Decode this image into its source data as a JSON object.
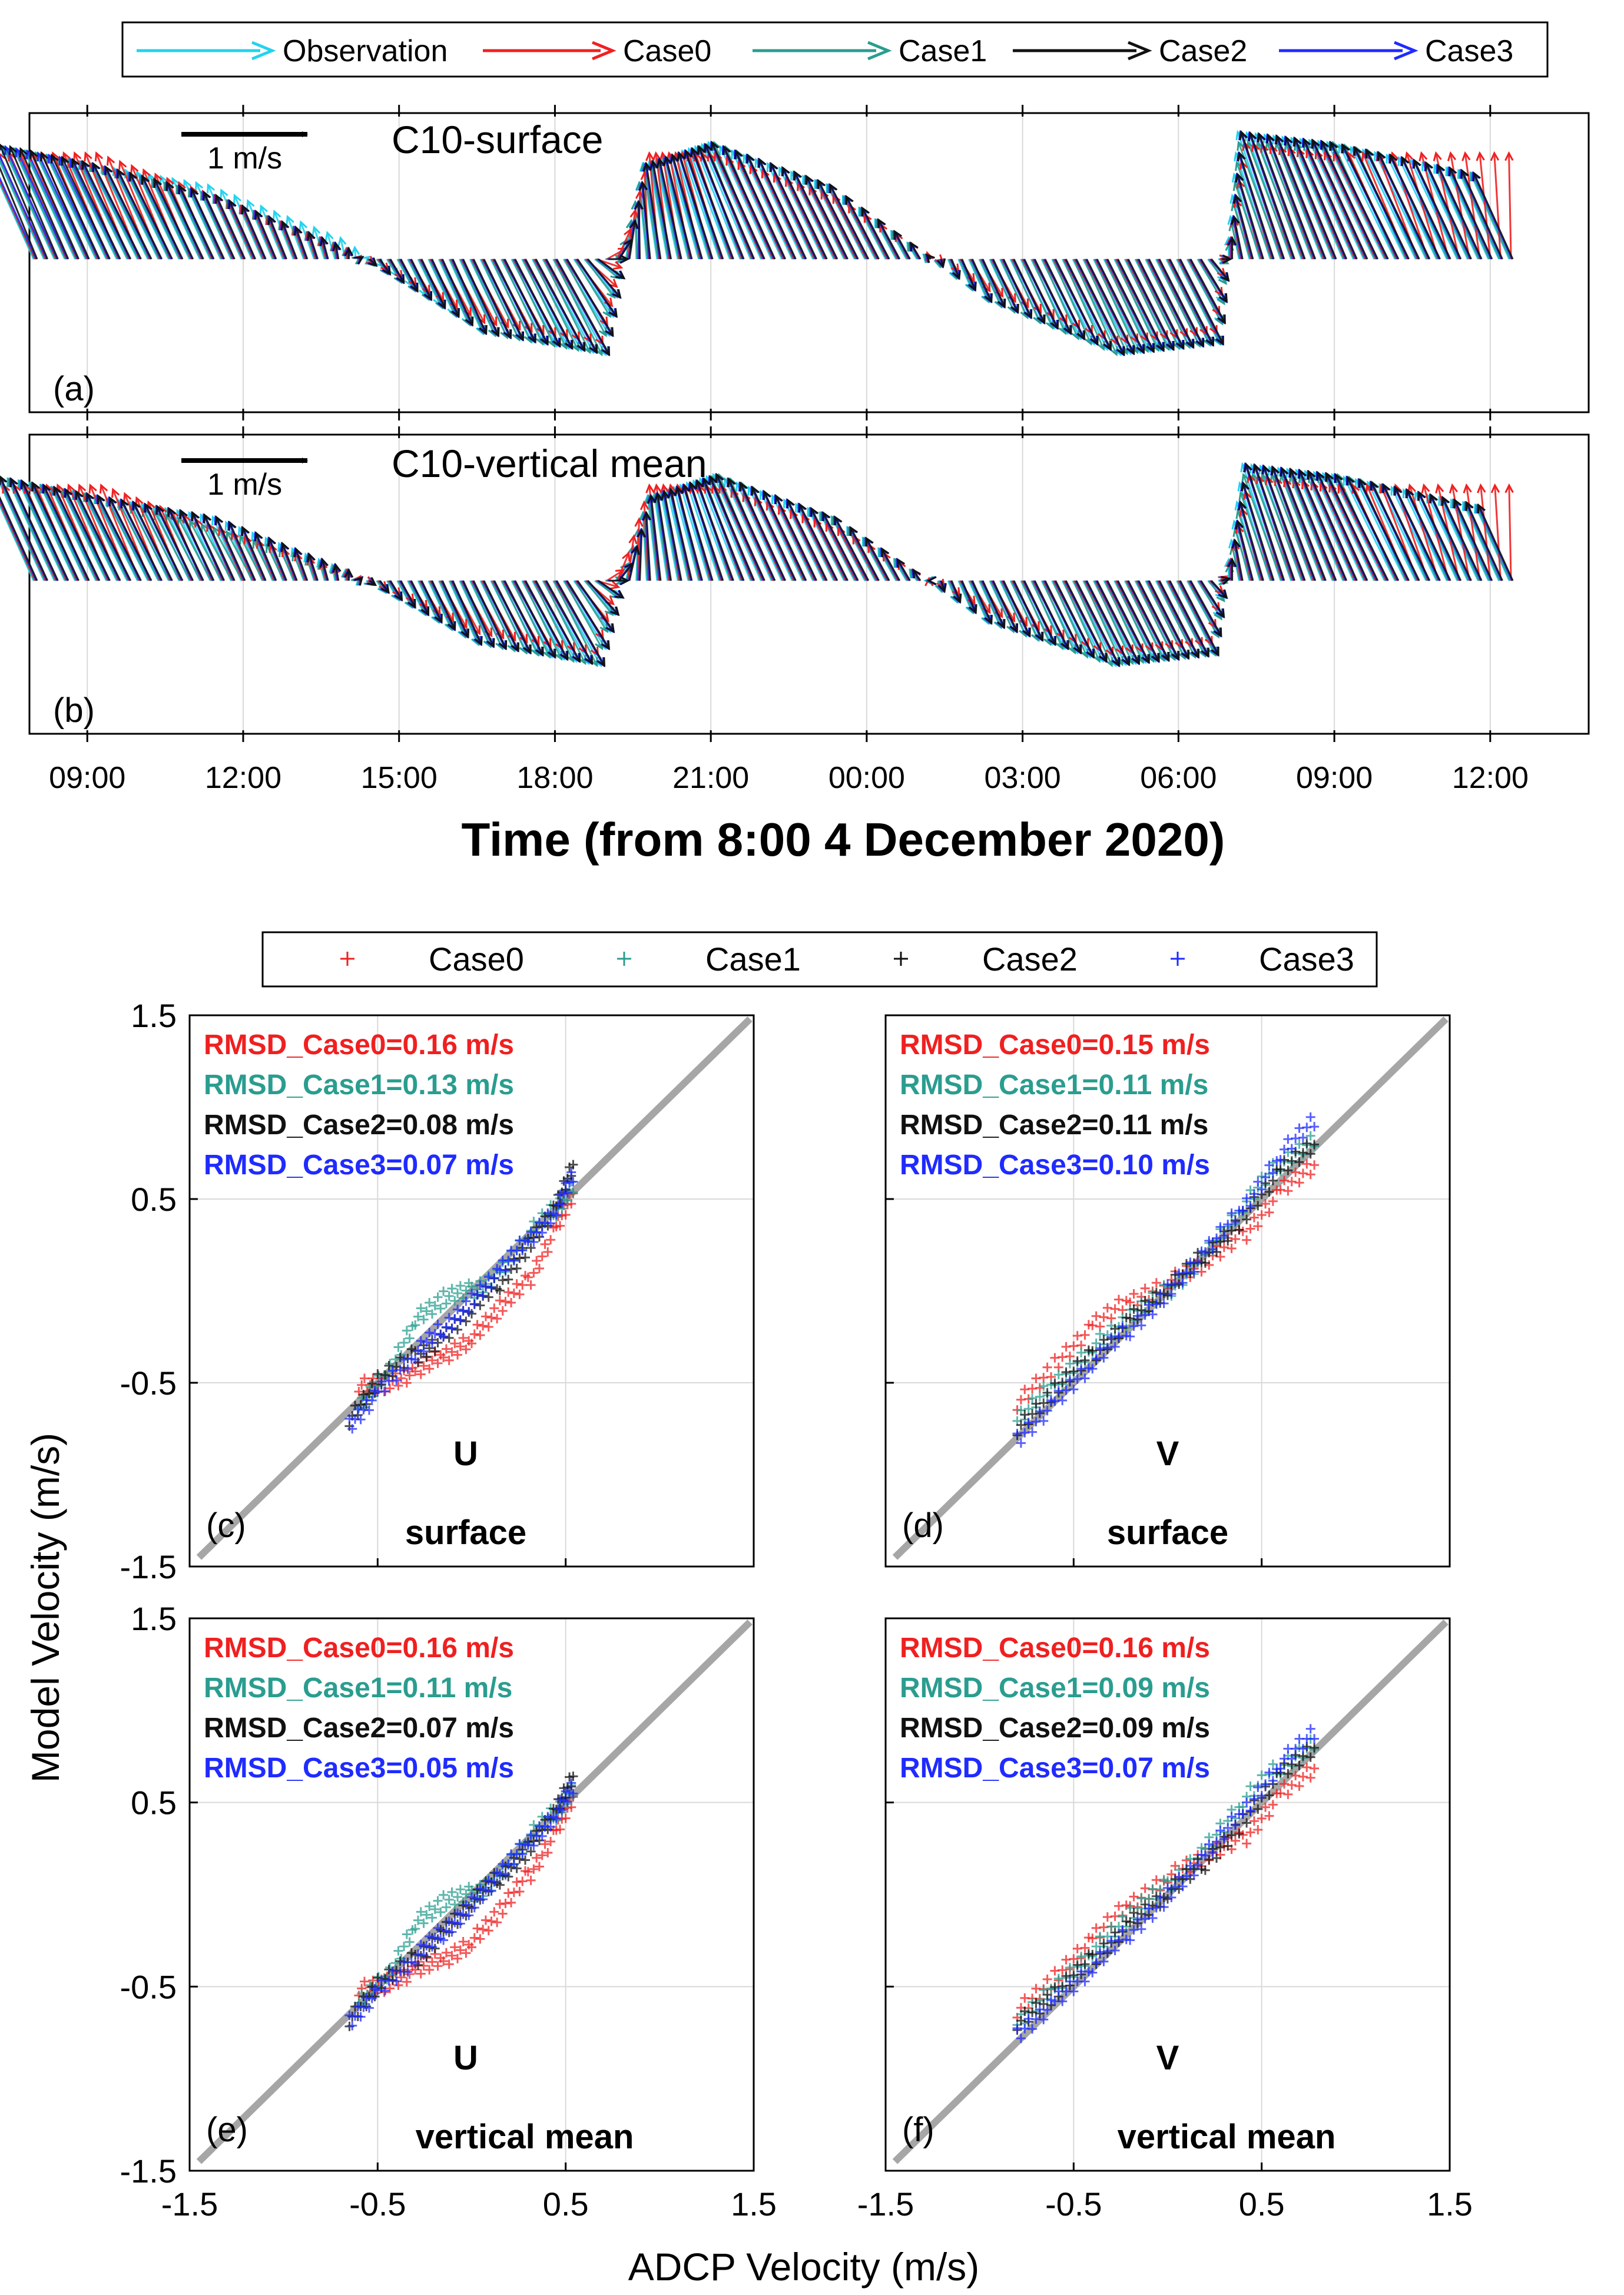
{
  "colors": {
    "observation": "#22d3ee",
    "case0": "#f02020",
    "case1": "#2a9d8f",
    "case2": "#111111",
    "case3": "#1f2bff",
    "grid": "#d9d9d9",
    "one_to_one": "#a6a6a6"
  },
  "top_legend": {
    "entries": [
      "Observation",
      "Case0",
      "Case1",
      "Case2",
      "Case3"
    ]
  },
  "scatter_legend": {
    "entries": [
      "Case0",
      "Case1",
      "Case2",
      "Case3"
    ]
  },
  "time_axis": {
    "ticks": [
      "09:00",
      "12:00",
      "15:00",
      "18:00",
      "21:00",
      "00:00",
      "03:00",
      "06:00",
      "09:00",
      "12:00"
    ],
    "xlabel": "Time (from 8:00 4 December 2020)"
  },
  "scale_label": "1 m/s",
  "scatter_axes": {
    "xlabel": "ADCP Velocity (m/s)",
    "ylabel": "Model Velocity (m/s)",
    "ticks": [
      "-1.5",
      "-0.5",
      "0.5",
      "1.5"
    ]
  },
  "chart_data": [
    {
      "type": "vector-time-series",
      "panel": "(a)",
      "title": "C10-surface",
      "x_unit": "hours since 8:00 4 December 2020",
      "xlim": [
        0.0,
        29.6
      ],
      "series": [
        {
          "name": "Observation",
          "time_h": [
            0,
            2,
            4,
            6,
            8,
            10,
            12,
            14,
            16,
            18,
            20,
            22,
            24,
            26,
            28.5
          ],
          "u": [
            0.55,
            0.5,
            0.35,
            0.05,
            -0.35,
            -0.55,
            0.15,
            0.55,
            0.4,
            -0.2,
            -0.5,
            -0.45,
            0.45,
            0.6,
            0.4
          ],
          "v": [
            0.55,
            0.45,
            0.35,
            0.1,
            -0.35,
            -0.45,
            0.45,
            0.55,
            0.35,
            -0.2,
            -0.45,
            -0.4,
            0.6,
            0.55,
            0.4
          ]
        },
        {
          "name": "Case0",
          "time_h": [
            0,
            2,
            4,
            6,
            8,
            10,
            12,
            14,
            16,
            18,
            20,
            22,
            24,
            26,
            28.5
          ],
          "u": [
            0.5,
            0.45,
            0.3,
            0.0,
            -0.35,
            -0.5,
            0.1,
            0.5,
            0.35,
            -0.2,
            -0.45,
            -0.4,
            0.4,
            0.55,
            0.0
          ],
          "v": [
            0.5,
            0.5,
            0.3,
            0.05,
            -0.3,
            -0.4,
            0.5,
            0.5,
            0.3,
            -0.15,
            -0.4,
            -0.35,
            0.55,
            0.5,
            0.5
          ]
        },
        {
          "name": "Case1",
          "time_h": [
            0,
            2,
            4,
            6,
            8,
            10,
            12,
            14,
            16,
            18,
            20,
            22,
            24,
            26,
            28.5
          ],
          "u": [
            0.55,
            0.5,
            0.3,
            0.0,
            -0.35,
            -0.5,
            0.15,
            0.5,
            0.4,
            -0.2,
            -0.45,
            -0.45,
            0.45,
            0.55,
            0.4
          ],
          "v": [
            0.55,
            0.45,
            0.3,
            0.05,
            -0.35,
            -0.45,
            0.45,
            0.55,
            0.35,
            -0.2,
            -0.45,
            -0.4,
            0.55,
            0.55,
            0.4
          ]
        },
        {
          "name": "Case2",
          "time_h": [
            0,
            2,
            4,
            6,
            8,
            10,
            12,
            14,
            16,
            18,
            20,
            22,
            24,
            26,
            28.5
          ],
          "u": [
            0.5,
            0.5,
            0.3,
            0.0,
            -0.35,
            -0.55,
            0.15,
            0.55,
            0.4,
            -0.2,
            -0.5,
            -0.45,
            0.45,
            0.6,
            0.4
          ],
          "v": [
            0.55,
            0.45,
            0.3,
            0.05,
            -0.35,
            -0.45,
            0.45,
            0.55,
            0.35,
            -0.2,
            -0.45,
            -0.4,
            0.6,
            0.55,
            0.4
          ]
        },
        {
          "name": "Case3",
          "time_h": [
            0,
            2,
            4,
            6,
            8,
            10,
            12,
            14,
            16,
            18,
            20,
            22,
            24,
            26,
            28.5
          ],
          "u": [
            0.55,
            0.5,
            0.3,
            0.0,
            -0.35,
            -0.55,
            0.15,
            0.55,
            0.4,
            -0.2,
            -0.5,
            -0.45,
            0.45,
            0.6,
            0.4
          ],
          "v": [
            0.55,
            0.45,
            0.3,
            0.05,
            -0.35,
            -0.45,
            0.45,
            0.55,
            0.35,
            -0.2,
            -0.45,
            -0.4,
            0.6,
            0.55,
            0.4
          ]
        }
      ]
    },
    {
      "type": "vector-time-series",
      "panel": "(b)",
      "title": "C10-vertical mean",
      "x_unit": "hours since 8:00 4 December 2020",
      "xlim": [
        0.0,
        29.6
      ],
      "series": [
        {
          "name": "Observation",
          "time_h": [
            0,
            2,
            4,
            6,
            8,
            10,
            12,
            14,
            16,
            18,
            20,
            22,
            24,
            26,
            28.5
          ],
          "u": [
            0.5,
            0.45,
            0.3,
            0.0,
            -0.3,
            -0.5,
            0.1,
            0.5,
            0.35,
            -0.2,
            -0.45,
            -0.4,
            0.4,
            0.55,
            0.35
          ],
          "v": [
            0.5,
            0.4,
            0.3,
            0.05,
            -0.3,
            -0.4,
            0.4,
            0.5,
            0.3,
            -0.2,
            -0.4,
            -0.35,
            0.55,
            0.5,
            0.35
          ]
        },
        {
          "name": "Case0",
          "time_h": [
            0,
            2,
            4,
            6,
            8,
            10,
            12,
            14,
            16,
            18,
            20,
            22,
            24,
            26,
            28.5
          ],
          "u": [
            0.45,
            0.4,
            0.25,
            0.0,
            -0.3,
            -0.45,
            0.1,
            0.45,
            0.3,
            -0.2,
            -0.4,
            -0.35,
            0.35,
            0.5,
            0.0
          ],
          "v": [
            0.45,
            0.45,
            0.25,
            0.05,
            -0.25,
            -0.35,
            0.45,
            0.45,
            0.25,
            -0.15,
            -0.35,
            -0.3,
            0.5,
            0.45,
            0.45
          ]
        },
        {
          "name": "Case1",
          "time_h": [
            0,
            2,
            4,
            6,
            8,
            10,
            12,
            14,
            16,
            18,
            20,
            22,
            24,
            26,
            28.5
          ],
          "u": [
            0.5,
            0.45,
            0.3,
            0.0,
            -0.3,
            -0.45,
            0.1,
            0.45,
            0.35,
            -0.2,
            -0.4,
            -0.4,
            0.4,
            0.5,
            0.35
          ],
          "v": [
            0.5,
            0.4,
            0.25,
            0.05,
            -0.3,
            -0.4,
            0.4,
            0.5,
            0.3,
            -0.2,
            -0.4,
            -0.35,
            0.5,
            0.5,
            0.35
          ]
        },
        {
          "name": "Case2",
          "time_h": [
            0,
            2,
            4,
            6,
            8,
            10,
            12,
            14,
            16,
            18,
            20,
            22,
            24,
            26,
            28.5
          ],
          "u": [
            0.5,
            0.45,
            0.3,
            0.0,
            -0.3,
            -0.5,
            0.1,
            0.5,
            0.35,
            -0.2,
            -0.45,
            -0.4,
            0.4,
            0.55,
            0.35
          ],
          "v": [
            0.5,
            0.4,
            0.3,
            0.05,
            -0.3,
            -0.4,
            0.4,
            0.5,
            0.3,
            -0.2,
            -0.4,
            -0.35,
            0.55,
            0.5,
            0.35
          ]
        },
        {
          "name": "Case3",
          "time_h": [
            0,
            2,
            4,
            6,
            8,
            10,
            12,
            14,
            16,
            18,
            20,
            22,
            24,
            26,
            28.5
          ],
          "u": [
            0.5,
            0.45,
            0.3,
            0.0,
            -0.3,
            -0.5,
            0.1,
            0.5,
            0.35,
            -0.2,
            -0.45,
            -0.4,
            0.4,
            0.55,
            0.35
          ],
          "v": [
            0.5,
            0.4,
            0.3,
            0.05,
            -0.3,
            -0.4,
            0.4,
            0.5,
            0.3,
            -0.2,
            -0.4,
            -0.35,
            0.55,
            0.5,
            0.35
          ]
        }
      ]
    },
    {
      "type": "scatter",
      "panel": "(c)",
      "component": "U",
      "layer": "surface",
      "xlim": [
        -1.5,
        1.5
      ],
      "ylim": [
        -1.5,
        1.5
      ],
      "rmsd": [
        {
          "series": "Case0",
          "text": "RMSD_Case0=0.16 m/s"
        },
        {
          "series": "Case1",
          "text": "RMSD_Case1=0.13 m/s"
        },
        {
          "series": "Case2",
          "text": "RMSD_Case2=0.08 m/s"
        },
        {
          "series": "Case3",
          "text": "RMSD_Case3=0.07 m/s"
        }
      ],
      "series": [
        {
          "name": "Case0",
          "x": [
            -0.6,
            -0.45,
            -0.3,
            -0.15,
            0.0,
            0.15,
            0.3,
            0.45,
            0.55
          ],
          "y": [
            -0.5,
            -0.5,
            -0.45,
            -0.35,
            -0.25,
            -0.1,
            0.05,
            0.35,
            0.55
          ]
        },
        {
          "name": "Case1",
          "x": [
            -0.6,
            -0.45,
            -0.3,
            -0.15,
            0.0,
            0.15,
            0.3,
            0.45,
            0.55
          ],
          "y": [
            -0.65,
            -0.45,
            -0.15,
            -0.05,
            0.0,
            0.1,
            0.3,
            0.45,
            0.6
          ]
        },
        {
          "name": "Case2",
          "x": [
            -0.65,
            -0.5,
            -0.3,
            -0.15,
            0.0,
            0.15,
            0.3,
            0.45,
            0.55
          ],
          "y": [
            -0.7,
            -0.5,
            -0.35,
            -0.25,
            -0.1,
            0.05,
            0.25,
            0.45,
            0.7
          ]
        },
        {
          "name": "Case3",
          "x": [
            -0.65,
            -0.5,
            -0.3,
            -0.15,
            0.0,
            0.15,
            0.3,
            0.45,
            0.55
          ],
          "y": [
            -0.72,
            -0.55,
            -0.35,
            -0.2,
            -0.05,
            0.1,
            0.28,
            0.45,
            0.65
          ]
        }
      ]
    },
    {
      "type": "scatter",
      "panel": "(d)",
      "component": "V",
      "layer": "surface",
      "xlim": [
        -1.5,
        1.5
      ],
      "ylim": [
        -1.5,
        1.5
      ],
      "rmsd": [
        {
          "series": "Case0",
          "text": "RMSD_Case0=0.15 m/s"
        },
        {
          "series": "Case1",
          "text": "RMSD_Case1=0.11 m/s"
        },
        {
          "series": "Case2",
          "text": "RMSD_Case2=0.11 m/s"
        },
        {
          "series": "Case3",
          "text": "RMSD_Case3=0.10 m/s"
        }
      ],
      "series": [
        {
          "name": "Case0",
          "x": [
            -0.8,
            -0.6,
            -0.4,
            -0.2,
            0.0,
            0.2,
            0.4,
            0.6,
            0.8
          ],
          "y": [
            -0.6,
            -0.4,
            -0.2,
            -0.05,
            0.05,
            0.15,
            0.3,
            0.55,
            0.7
          ]
        },
        {
          "name": "Case1",
          "x": [
            -0.8,
            -0.6,
            -0.4,
            -0.2,
            0.0,
            0.2,
            0.4,
            0.6,
            0.8
          ],
          "y": [
            -0.72,
            -0.5,
            -0.3,
            -0.15,
            0.0,
            0.2,
            0.45,
            0.7,
            0.85
          ]
        },
        {
          "name": "Case2",
          "x": [
            -0.8,
            -0.6,
            -0.4,
            -0.2,
            0.0,
            0.2,
            0.4,
            0.6,
            0.8
          ],
          "y": [
            -0.75,
            -0.55,
            -0.35,
            -0.15,
            0.0,
            0.2,
            0.4,
            0.65,
            0.8
          ]
        },
        {
          "name": "Case3",
          "x": [
            -0.8,
            -0.6,
            -0.4,
            -0.2,
            0.0,
            0.2,
            0.4,
            0.6,
            0.8
          ],
          "y": [
            -0.8,
            -0.6,
            -0.4,
            -0.2,
            0.0,
            0.2,
            0.45,
            0.75,
            0.95
          ]
        }
      ]
    },
    {
      "type": "scatter",
      "panel": "(e)",
      "component": "U",
      "layer": "vertical mean",
      "xlim": [
        -1.5,
        1.5
      ],
      "ylim": [
        -1.5,
        1.5
      ],
      "rmsd": [
        {
          "series": "Case0",
          "text": "RMSD_Case0=0.16 m/s"
        },
        {
          "series": "Case1",
          "text": "RMSD_Case1=0.11 m/s"
        },
        {
          "series": "Case2",
          "text": "RMSD_Case2=0.07 m/s"
        },
        {
          "series": "Case3",
          "text": "RMSD_Case3=0.05 m/s"
        }
      ],
      "series": [
        {
          "name": "Case0",
          "x": [
            -0.6,
            -0.45,
            -0.3,
            -0.15,
            0.0,
            0.15,
            0.3,
            0.45,
            0.55
          ],
          "y": [
            -0.5,
            -0.48,
            -0.42,
            -0.35,
            -0.25,
            -0.1,
            0.1,
            0.35,
            0.55
          ]
        },
        {
          "name": "Case1",
          "x": [
            -0.6,
            -0.45,
            -0.3,
            -0.15,
            0.0,
            0.15,
            0.3,
            0.45,
            0.55
          ],
          "y": [
            -0.6,
            -0.45,
            -0.15,
            -0.05,
            0.0,
            0.1,
            0.3,
            0.45,
            0.6
          ]
        },
        {
          "name": "Case2",
          "x": [
            -0.65,
            -0.5,
            -0.3,
            -0.15,
            0.0,
            0.15,
            0.3,
            0.45,
            0.55
          ],
          "y": [
            -0.68,
            -0.5,
            -0.35,
            -0.2,
            -0.05,
            0.1,
            0.25,
            0.45,
            0.65
          ]
        },
        {
          "name": "Case3",
          "x": [
            -0.65,
            -0.5,
            -0.3,
            -0.15,
            0.0,
            0.15,
            0.3,
            0.45,
            0.55
          ],
          "y": [
            -0.68,
            -0.52,
            -0.35,
            -0.2,
            -0.05,
            0.1,
            0.28,
            0.45,
            0.6
          ]
        }
      ]
    },
    {
      "type": "scatter",
      "panel": "(f)",
      "component": "V",
      "layer": "vertical mean",
      "xlim": [
        -1.5,
        1.5
      ],
      "ylim": [
        -1.5,
        1.5
      ],
      "rmsd": [
        {
          "series": "Case0",
          "text": "RMSD_Case0=0.16 m/s"
        },
        {
          "series": "Case1",
          "text": "RMSD_Case1=0.09 m/s"
        },
        {
          "series": "Case2",
          "text": "RMSD_Case2=0.09 m/s"
        },
        {
          "series": "Case3",
          "text": "RMSD_Case3=0.07 m/s"
        }
      ],
      "series": [
        {
          "name": "Case0",
          "x": [
            -0.8,
            -0.6,
            -0.4,
            -0.2,
            0.0,
            0.2,
            0.4,
            0.6,
            0.8
          ],
          "y": [
            -0.62,
            -0.45,
            -0.25,
            -0.05,
            0.1,
            0.2,
            0.3,
            0.55,
            0.7
          ]
        },
        {
          "name": "Case1",
          "x": [
            -0.8,
            -0.6,
            -0.4,
            -0.2,
            0.0,
            0.2,
            0.4,
            0.6,
            0.8
          ],
          "y": [
            -0.72,
            -0.5,
            -0.3,
            -0.12,
            0.05,
            0.25,
            0.5,
            0.7,
            0.85
          ]
        },
        {
          "name": "Case2",
          "x": [
            -0.8,
            -0.6,
            -0.4,
            -0.2,
            0.0,
            0.2,
            0.4,
            0.6,
            0.8
          ],
          "y": [
            -0.7,
            -0.55,
            -0.35,
            -0.15,
            0.0,
            0.18,
            0.4,
            0.65,
            0.8
          ]
        },
        {
          "name": "Case3",
          "x": [
            -0.8,
            -0.6,
            -0.4,
            -0.2,
            0.0,
            0.2,
            0.4,
            0.6,
            0.8
          ],
          "y": [
            -0.75,
            -0.58,
            -0.4,
            -0.2,
            0.0,
            0.2,
            0.45,
            0.72,
            0.9
          ]
        }
      ]
    }
  ]
}
